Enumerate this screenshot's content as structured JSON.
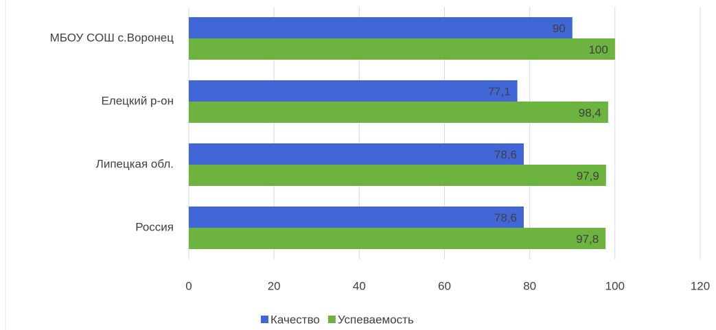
{
  "chart_data": {
    "type": "hbar",
    "categories": [
      "МБОУ СОШ с.Воронец",
      "Елецкий р-он",
      "Липецкая обл.",
      "Россия"
    ],
    "series": [
      {
        "name": "Качество",
        "color": "#4166d5",
        "values": [
          90,
          77.1,
          78.6,
          78.6
        ],
        "value_labels": [
          "90",
          "77,1",
          "78,6",
          "78,6"
        ]
      },
      {
        "name": "Успеваемость",
        "color": "#6cb33f",
        "values": [
          100,
          98.4,
          97.9,
          97.8
        ],
        "value_labels": [
          "100",
          "98,4",
          "97,9",
          "97,8"
        ]
      }
    ],
    "xlim": [
      0,
      120
    ],
    "xticks": [
      0,
      20,
      40,
      60,
      80,
      100,
      120
    ],
    "grid": true,
    "legend": "bottom"
  }
}
